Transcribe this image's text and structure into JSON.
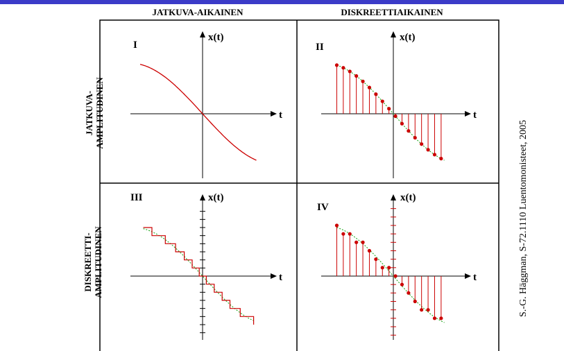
{
  "columns": {
    "continuous_time": "JATKUVA-AIKAINEN",
    "discrete_time": "DISKREETTIAIKAINEN"
  },
  "rows": {
    "continuous_amplitude": [
      "JATKUVA-",
      "AMPLITUDINEN"
    ],
    "discrete_amplitude": [
      "DISKREETTI-",
      "AMPLITUDINEN"
    ]
  },
  "panels": [
    {
      "roman": "I",
      "y_label": "x(t)",
      "x_label": "t"
    },
    {
      "roman": "II",
      "y_label": "x(t)",
      "x_label": "t"
    },
    {
      "roman": "III",
      "y_label": "x(t)",
      "x_label": "t"
    },
    {
      "roman": "IV",
      "y_label": "x(t)",
      "x_label": "t"
    }
  ],
  "credit": "S.-G. Häggman, S-72.1110 Luentomonisteet, 2005",
  "colors": {
    "top_bar": "#3b3bc8",
    "signal": "#cc0000",
    "reference_curve": "#22aa22",
    "axes": "#000000",
    "grid": "#000000"
  }
}
